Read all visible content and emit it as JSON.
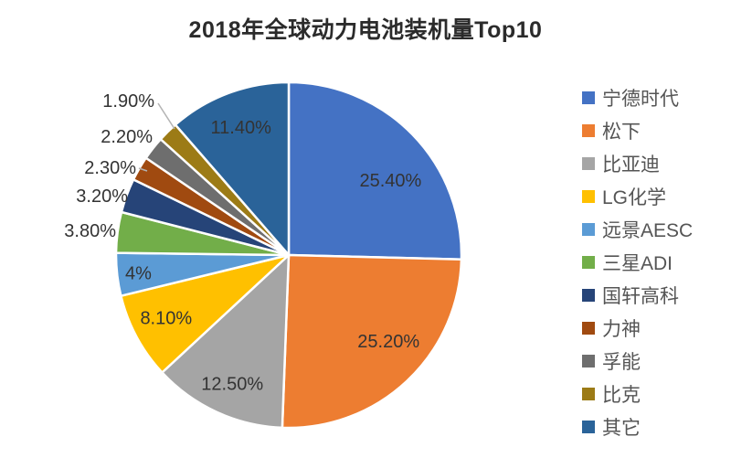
{
  "page": {
    "background": "#ffffff"
  },
  "chart_data": {
    "type": "pie",
    "title": "2018年全球动力电池装机量Top10",
    "legend_position": "right",
    "label_color": "#333333",
    "slice_border_color": "#ffffff",
    "leader_line_color": "#b3b3b3",
    "slices": [
      {
        "label": "宁德时代",
        "value": 25.4,
        "display": "25.40%",
        "color": "#4472c4",
        "label_placement": "inside"
      },
      {
        "label": "松下",
        "value": 25.2,
        "display": "25.20%",
        "color": "#ed7d31",
        "label_placement": "inside"
      },
      {
        "label": "比亚迪",
        "value": 12.5,
        "display": "12.50%",
        "color": "#a5a5a5",
        "label_placement": "inside"
      },
      {
        "label": "LG化学",
        "value": 8.1,
        "display": "8.10%",
        "color": "#ffc000",
        "label_placement": "inside"
      },
      {
        "label": "远景AESC",
        "value": 4.0,
        "display": "4%",
        "color": "#5b9bd5",
        "label_placement": "inside"
      },
      {
        "label": "三星ADI",
        "value": 3.8,
        "display": "3.80%",
        "color": "#72ae49",
        "label_placement": "outside"
      },
      {
        "label": "国轩高科",
        "value": 3.2,
        "display": "3.20%",
        "color": "#264478",
        "label_placement": "outside"
      },
      {
        "label": "力神",
        "value": 2.3,
        "display": "2.30%",
        "color": "#a04a10",
        "label_placement": "outside",
        "leader": true
      },
      {
        "label": "孚能",
        "value": 2.2,
        "display": "2.20%",
        "color": "#6e6e6e",
        "label_placement": "outside"
      },
      {
        "label": "比克",
        "value": 1.9,
        "display": "1.90%",
        "color": "#9c7b16",
        "label_placement": "outside",
        "leader": true
      },
      {
        "label": "其它",
        "value": 11.4,
        "display": "11.40%",
        "color": "#2a6399",
        "label_placement": "inside"
      }
    ]
  }
}
